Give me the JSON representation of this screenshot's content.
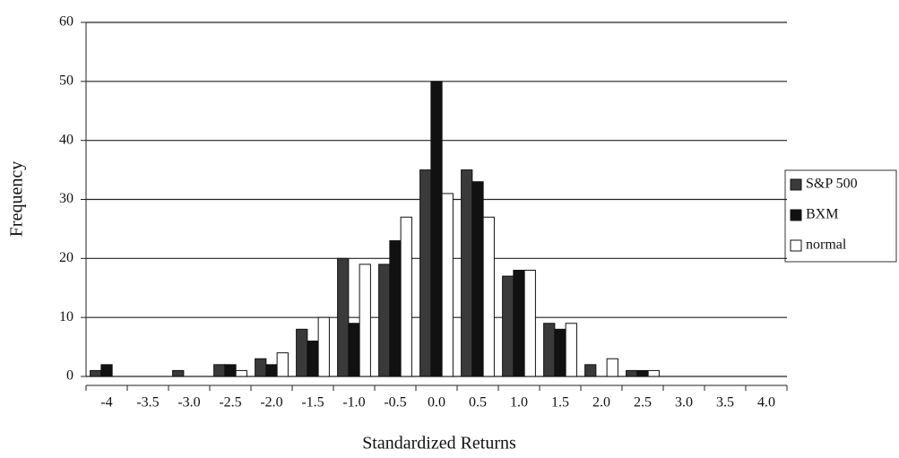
{
  "chart_data": {
    "type": "bar",
    "x_label": "Standardized Returns",
    "y_label": "Frequency",
    "categories": [
      "-4",
      "-3.5",
      "-3.0",
      "-2.5",
      "-2.0",
      "-1.5",
      "-1.0",
      "-0.5",
      "0.0",
      "0.5",
      "1.0",
      "1.5",
      "2.0",
      "2.5",
      "3.0",
      "3.5",
      "4.0"
    ],
    "series": [
      {
        "name": "S&P 500",
        "color": "#3a3a3a",
        "values": [
          1,
          0,
          1,
          2,
          3,
          8,
          20,
          19,
          35,
          35,
          17,
          9,
          2,
          1,
          0,
          0,
          0
        ]
      },
      {
        "name": "BXM",
        "color": "#111111",
        "values": [
          2,
          0,
          0,
          2,
          2,
          6,
          9,
          23,
          50,
          33,
          18,
          8,
          0,
          1,
          0,
          0,
          0
        ]
      },
      {
        "name": "normal",
        "color": "#ffffff",
        "values": [
          0,
          0,
          0,
          1,
          4,
          10,
          19,
          27,
          31,
          27,
          18,
          9,
          3,
          1,
          0,
          0,
          0
        ]
      }
    ],
    "ylim": [
      0,
      60
    ],
    "yticks": [
      0,
      10,
      20,
      30,
      40,
      50,
      60
    ],
    "grid": true,
    "legend": "right"
  }
}
